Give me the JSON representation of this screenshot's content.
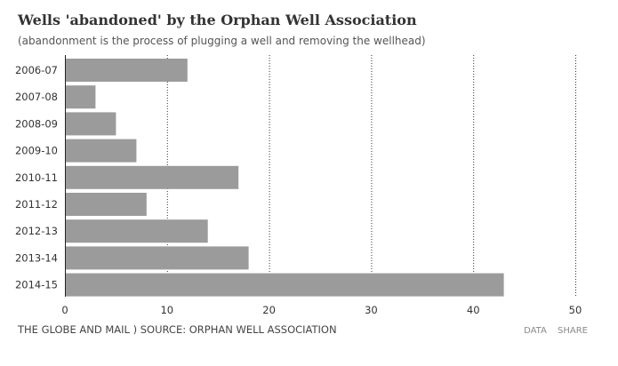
{
  "header": {
    "title": "Wells 'abandoned' by the Orphan Well Association",
    "subtitle": "(abandonment is the process of plugging a well and removing the wellhead)"
  },
  "footer": {
    "source": "THE GLOBE AND MAIL ) SOURCE: ORPHAN WELL ASSOCIATION",
    "data_link": "DATA",
    "share_link": "SHARE"
  },
  "colors": {
    "bar": "#9b9b9b",
    "axis": "#222222",
    "gridline": "#333333",
    "text": "#333333"
  },
  "chart_data": {
    "type": "bar",
    "orientation": "horizontal",
    "title": "Wells 'abandoned' by the Orphan Well Association",
    "subtitle": "(abandonment is the process of plugging a well and removing the wellhead)",
    "categories": [
      "2006-07",
      "2007-08",
      "2008-09",
      "2009-10",
      "2010-11",
      "2011-12",
      "2012-13",
      "2013-14",
      "2014-15"
    ],
    "values": [
      12,
      3,
      5,
      7,
      17,
      8,
      14,
      18,
      43
    ],
    "xlim": [
      0,
      50
    ],
    "xticks": [
      0,
      10,
      20,
      30,
      40,
      50
    ],
    "grid": "vertical dotted",
    "legend": "none"
  }
}
